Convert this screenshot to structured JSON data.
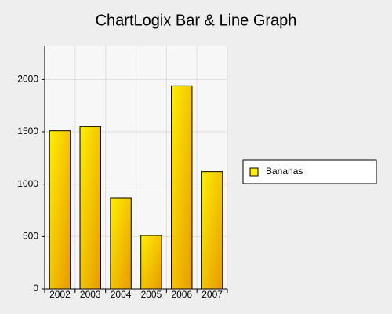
{
  "chart_data": {
    "type": "bar",
    "title": "ChartLogix Bar & Line Graph",
    "categories": [
      "2002",
      "2003",
      "2004",
      "2005",
      "2006",
      "2007"
    ],
    "series": [
      {
        "name": "Bananas",
        "color": "#ffee00",
        "values": [
          1510,
          1550,
          870,
          510,
          1940,
          1120
        ]
      }
    ],
    "ylim": [
      0,
      2325
    ],
    "yticks": [
      0,
      500,
      1000,
      1500,
      2000
    ],
    "grid": true,
    "legend": "right"
  }
}
